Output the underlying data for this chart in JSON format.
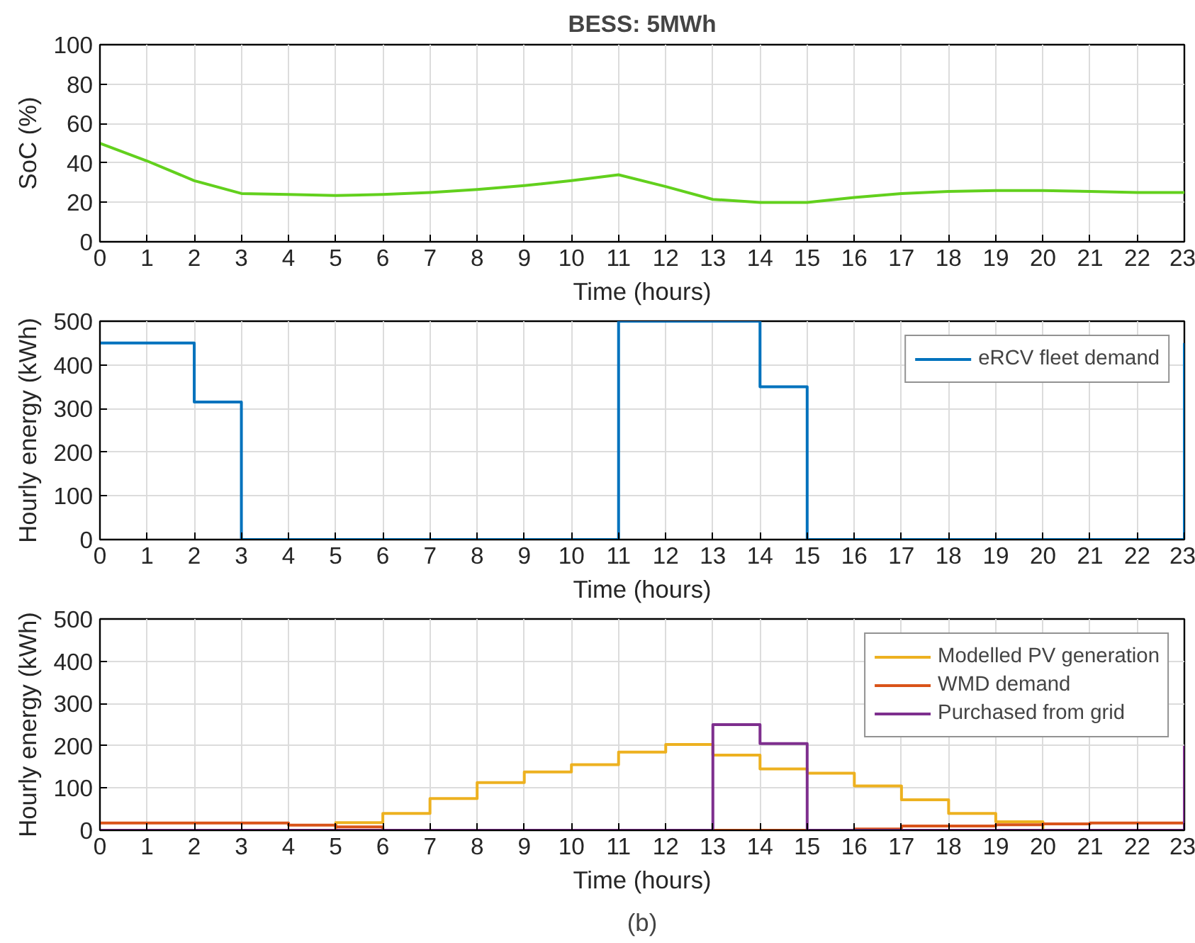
{
  "chart_data": [
    {
      "type": "line",
      "title": "BESS: 5MWh",
      "xlabel": "Time (hours)",
      "ylabel": "SoC (%)",
      "x": [
        0,
        1,
        2,
        3,
        4,
        5,
        6,
        7,
        8,
        9,
        10,
        11,
        12,
        13,
        14,
        15,
        16,
        17,
        18,
        19,
        20,
        21,
        22,
        23
      ],
      "series": [
        {
          "color": "#62d01d",
          "values": [
            50,
            41,
            31,
            24.5,
            24,
            23.5,
            24,
            25,
            26.5,
            28.5,
            31,
            34,
            28,
            21.5,
            20,
            20,
            22.5,
            24.5,
            25.5,
            26,
            26,
            25.5,
            25,
            25
          ]
        }
      ],
      "xlim": [
        0,
        23
      ],
      "xticks": [
        0,
        1,
        2,
        3,
        4,
        5,
        6,
        7,
        8,
        9,
        10,
        11,
        12,
        13,
        14,
        15,
        16,
        17,
        18,
        19,
        20,
        21,
        22,
        23
      ],
      "ylim": [
        0,
        100
      ],
      "yticks": [
        0,
        20,
        40,
        60,
        80,
        100
      ],
      "grid": true
    },
    {
      "type": "step",
      "xlabel": "Time (hours)",
      "ylabel": "Hourly energy (kWh)",
      "x": [
        0,
        1,
        2,
        3,
        4,
        5,
        6,
        7,
        8,
        9,
        10,
        11,
        12,
        13,
        14,
        15,
        16,
        17,
        18,
        19,
        20,
        21,
        22,
        23
      ],
      "series": [
        {
          "name": "eRCV fleet demand",
          "color": "#0072bd",
          "values": [
            450,
            450,
            315,
            0,
            0,
            0,
            0,
            0,
            0,
            0,
            0,
            500,
            500,
            500,
            350,
            0,
            0,
            0,
            0,
            0,
            0,
            0,
            0,
            450
          ]
        }
      ],
      "xlim": [
        0,
        23
      ],
      "xticks": [
        0,
        1,
        2,
        3,
        4,
        5,
        6,
        7,
        8,
        9,
        10,
        11,
        12,
        13,
        14,
        15,
        16,
        17,
        18,
        19,
        20,
        21,
        22,
        23
      ],
      "ylim": [
        0,
        500
      ],
      "yticks": [
        0,
        100,
        200,
        300,
        400,
        500
      ],
      "grid": true,
      "legend": "top right"
    },
    {
      "type": "step",
      "xlabel": "Time (hours)",
      "ylabel": "Hourly energy (kWh)",
      "annotations": [
        "(b)"
      ],
      "x": [
        0,
        1,
        2,
        3,
        4,
        5,
        6,
        7,
        8,
        9,
        10,
        11,
        12,
        13,
        14,
        15,
        16,
        17,
        18,
        19,
        20,
        21,
        22,
        23
      ],
      "series": [
        {
          "name": "Modelled PV generation",
          "color": "#edb120",
          "values": [
            null,
            null,
            null,
            null,
            0,
            18,
            40,
            75,
            113,
            138,
            155,
            185,
            203,
            178,
            145,
            135,
            105,
            72,
            40,
            20,
            0,
            0,
            null,
            null
          ]
        },
        {
          "name": "WMD demand",
          "color": "#d95319",
          "values": [
            17,
            17,
            17,
            17,
            12,
            8,
            0,
            0,
            0,
            0,
            0,
            0,
            0,
            0,
            0,
            0,
            3,
            10,
            10,
            13,
            15,
            17,
            17,
            17
          ]
        },
        {
          "name": "Purchased from grid",
          "color": "#7e2f8e",
          "values": [
            0,
            0,
            0,
            0,
            0,
            0,
            0,
            0,
            0,
            0,
            0,
            0,
            0,
            250,
            205,
            0,
            0,
            0,
            0,
            0,
            0,
            0,
            0,
            200
          ]
        }
      ],
      "xlim": [
        0,
        23
      ],
      "xticks": [
        0,
        1,
        2,
        3,
        4,
        5,
        6,
        7,
        8,
        9,
        10,
        11,
        12,
        13,
        14,
        15,
        16,
        17,
        18,
        19,
        20,
        21,
        22,
        23
      ],
      "ylim": [
        0,
        500
      ],
      "yticks": [
        0,
        100,
        200,
        300,
        400,
        500
      ],
      "grid": true,
      "legend": "top right"
    }
  ]
}
